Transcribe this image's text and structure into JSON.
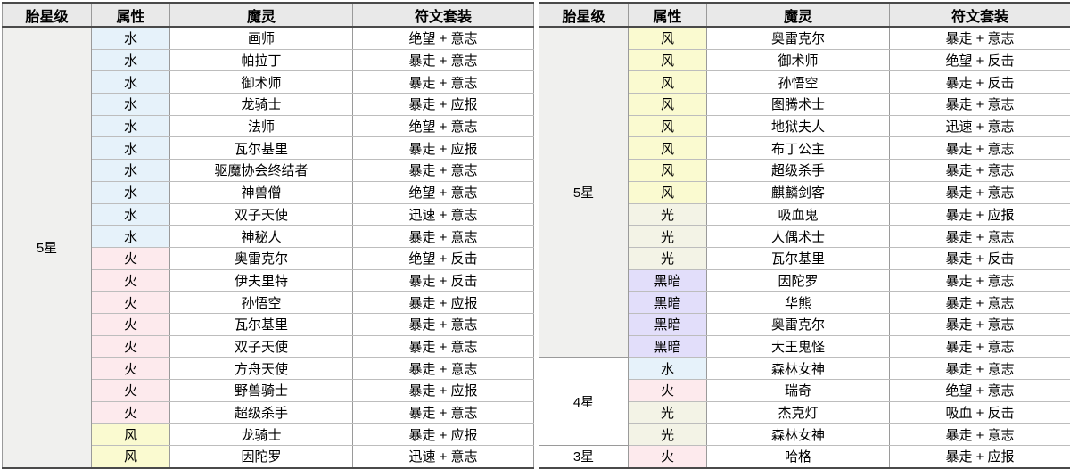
{
  "attribute_colors": {
    "水": "#e6f2fa",
    "火": "#fdeaed",
    "风": "#fafad0",
    "光": "#f3f3e6",
    "黑暗": "#e2defa"
  },
  "star_colors": {
    "5星": "#f0f0ee",
    "4星": "#ffffff",
    "3星": "#ffffff"
  },
  "tables": [
    {
      "headers": [
        "胎星级",
        "属性",
        "魔灵",
        "符文套装"
      ],
      "groups": [
        {
          "star": "5星",
          "rows": [
            {
              "attr": "水",
              "monster": "画师",
              "runes": "绝望 + 意志"
            },
            {
              "attr": "水",
              "monster": "帕拉丁",
              "runes": "暴走 + 意志"
            },
            {
              "attr": "水",
              "monster": "御术师",
              "runes": "暴走 + 意志"
            },
            {
              "attr": "水",
              "monster": "龙骑士",
              "runes": "暴走 + 应报"
            },
            {
              "attr": "水",
              "monster": "法师",
              "runes": "绝望 + 意志"
            },
            {
              "attr": "水",
              "monster": "瓦尔基里",
              "runes": "暴走 + 应报"
            },
            {
              "attr": "水",
              "monster": "驱魔协会终结者",
              "runes": "暴走 + 意志"
            },
            {
              "attr": "水",
              "monster": "神兽僧",
              "runes": "绝望 + 意志"
            },
            {
              "attr": "水",
              "monster": "双子天使",
              "runes": "迅速 + 意志"
            },
            {
              "attr": "水",
              "monster": "神秘人",
              "runes": "暴走 + 意志"
            },
            {
              "attr": "火",
              "monster": "奥雷克尔",
              "runes": "绝望 + 反击"
            },
            {
              "attr": "火",
              "monster": "伊夫里特",
              "runes": "暴走 + 反击"
            },
            {
              "attr": "火",
              "monster": "孙悟空",
              "runes": "暴走 + 应报"
            },
            {
              "attr": "火",
              "monster": "瓦尔基里",
              "runes": "暴走 + 意志"
            },
            {
              "attr": "火",
              "monster": "双子天使",
              "runes": "暴走 + 意志"
            },
            {
              "attr": "火",
              "monster": "方舟天使",
              "runes": "暴走 + 意志"
            },
            {
              "attr": "火",
              "monster": "野兽骑士",
              "runes": "暴走 + 应报"
            },
            {
              "attr": "火",
              "monster": "超级杀手",
              "runes": "暴走 + 意志"
            },
            {
              "attr": "风",
              "monster": "龙骑士",
              "runes": "暴走 + 应报"
            },
            {
              "attr": "风",
              "monster": "因陀罗",
              "runes": "迅速 + 意志"
            }
          ]
        }
      ]
    },
    {
      "headers": [
        "胎星级",
        "属性",
        "魔灵",
        "符文套装"
      ],
      "groups": [
        {
          "star": "5星",
          "rows": [
            {
              "attr": "风",
              "monster": "奥雷克尔",
              "runes": "暴走 + 意志"
            },
            {
              "attr": "风",
              "monster": "御术师",
              "runes": "绝望 + 反击"
            },
            {
              "attr": "风",
              "monster": "孙悟空",
              "runes": "暴走 + 反击"
            },
            {
              "attr": "风",
              "monster": "图腾术士",
              "runes": "暴走 + 意志"
            },
            {
              "attr": "风",
              "monster": "地狱夫人",
              "runes": "迅速 + 意志"
            },
            {
              "attr": "风",
              "monster": "布丁公主",
              "runes": "暴走 + 意志"
            },
            {
              "attr": "风",
              "monster": "超级杀手",
              "runes": "暴走 + 意志"
            },
            {
              "attr": "风",
              "monster": "麒麟剑客",
              "runes": "暴走 + 意志"
            },
            {
              "attr": "光",
              "monster": "吸血鬼",
              "runes": "暴走 + 应报"
            },
            {
              "attr": "光",
              "monster": "人偶术士",
              "runes": "暴走 + 意志"
            },
            {
              "attr": "光",
              "monster": "瓦尔基里",
              "runes": "暴走 + 反击"
            },
            {
              "attr": "黑暗",
              "monster": "因陀罗",
              "runes": "暴走 + 意志"
            },
            {
              "attr": "黑暗",
              "monster": "华熊",
              "runes": "暴走 + 意志"
            },
            {
              "attr": "黑暗",
              "monster": "奥雷克尔",
              "runes": "暴走 + 意志"
            },
            {
              "attr": "黑暗",
              "monster": "大王鬼怪",
              "runes": "暴走 + 意志"
            }
          ]
        },
        {
          "star": "4星",
          "rows": [
            {
              "attr": "水",
              "monster": "森林女神",
              "runes": "暴走 + 意志"
            },
            {
              "attr": "火",
              "monster": "瑞奇",
              "runes": "绝望 + 意志"
            },
            {
              "attr": "光",
              "monster": "杰克灯",
              "runes": "吸血 + 反击"
            },
            {
              "attr": "光",
              "monster": "森林女神",
              "runes": "暴走 + 意志"
            }
          ]
        },
        {
          "star": "3星",
          "rows": [
            {
              "attr": "火",
              "monster": "哈格",
              "runes": "暴走 + 应报"
            }
          ]
        }
      ]
    }
  ]
}
